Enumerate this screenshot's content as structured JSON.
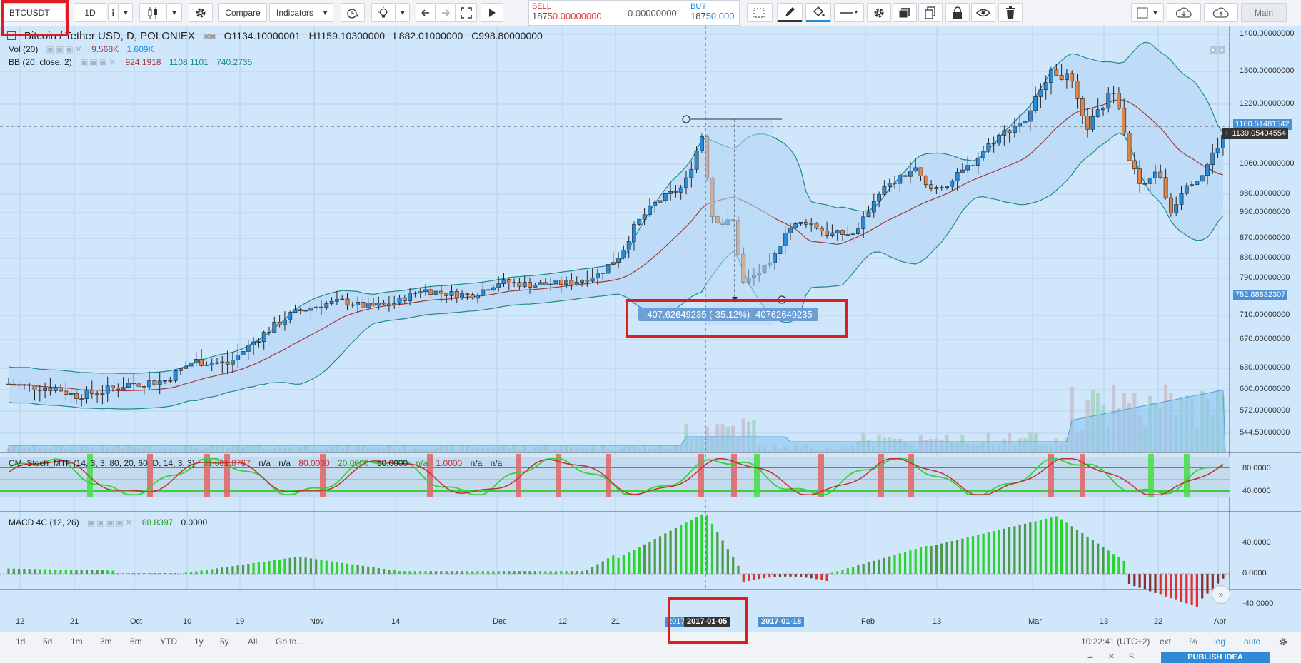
{
  "toolbar": {
    "symbol": "BTCUSDT",
    "interval": "1D",
    "compare_label": "Compare",
    "indicators_label": "Indicators",
    "sell_label": "SELL",
    "sell_price_prefix": "187",
    "sell_price_suffix": "50.00000000",
    "spread": "0.00000000",
    "buy_label": "BUY",
    "buy_price_prefix": "187",
    "buy_price_suffix": "50.000",
    "layout_label": "Main"
  },
  "legend": {
    "title": "Bitcoin / Tether USD, D, POLONIEX",
    "open": "O1134.10000001",
    "high": "H1159.10300000",
    "low": "L882.01000000",
    "close": "C998.80000000",
    "vol_label": "Vol (20)",
    "vol_value1": "9.568K",
    "vol_value2": "1.609K",
    "bb_label": "BB (20, close, 2)",
    "bb_value1": "924.1918",
    "bb_value2": "1108.1101",
    "bb_value3": "740.2735",
    "stoch_label": "CM_Stoch_MTF (14, 3, 3, 80, 20, 60, D, 14, 3, 3)",
    "stoch_v1": "81.8",
    "stoch_v2": "81.8767",
    "stoch_na1": "n/a",
    "stoch_na2": "n/a",
    "stoch_v3": "80.0000",
    "stoch_v4": "20.0000",
    "stoch_v5": "50.0000",
    "stoch_na3": "n/a",
    "stoch_v6": "1.0000",
    "stoch_na4": "n/a",
    "stoch_na5": "n/a",
    "macd_label": "MACD 4C (12, 26)",
    "macd_v1": "68.8397",
    "macd_v2": "0.0000"
  },
  "measure": {
    "text": "-407.62649235 (-35.12%) -40762649235"
  },
  "price_axis": [
    {
      "label": "1400.00000000",
      "price": 1400
    },
    {
      "label": "1300.00000000",
      "price": 1300
    },
    {
      "label": "1220.00000000",
      "price": 1220
    },
    {
      "label": "1060.00000000",
      "price": 1060
    },
    {
      "label": "980.00000000",
      "price": 980
    },
    {
      "label": "930.00000000",
      "price": 930
    },
    {
      "label": "870.00000000",
      "price": 870
    },
    {
      "label": "830.00000000",
      "price": 830
    },
    {
      "label": "790.00000000",
      "price": 790
    },
    {
      "label": "710.00000000",
      "price": 710
    },
    {
      "label": "670.00000000",
      "price": 670
    },
    {
      "label": "630.00000000",
      "price": 630
    },
    {
      "label": "600.00000000",
      "price": 600
    },
    {
      "label": "572.00000000",
      "price": 572
    },
    {
      "label": "544.50000000",
      "price": 544.5
    }
  ],
  "price_tags": {
    "high_tag": "1160.51481542",
    "last_tag": "1139.05404554",
    "low_tag": "752.88832307",
    "high_price": 1160.5,
    "last_price": 1139.05,
    "low_price": 752.89
  },
  "stoch_axis": [
    "80.0000",
    "40.0000"
  ],
  "macd_axis": [
    "40.0000",
    "0.0000",
    "-40.0000"
  ],
  "time_axis": [
    "12",
    "21",
    "Oct",
    "10",
    "19",
    "Nov",
    "14",
    "Dec",
    "12",
    "21",
    "Feb",
    "13",
    "Mar",
    "13",
    "22",
    "Apr"
  ],
  "time_markers": {
    "partial": "2017",
    "crosshair_date": "2017-01-05",
    "end_date": "2017-01-18"
  },
  "bottom_bar": {
    "ranges": [
      "1d",
      "5d",
      "1m",
      "3m",
      "6m",
      "YTD",
      "1y",
      "5y",
      "All"
    ],
    "goto_label": "Go to...",
    "clock": "10:22:41 (UTC+2)",
    "ext_label": "ext",
    "percent_label": "%",
    "log_label": "log",
    "auto_label": "auto",
    "publish_label": "PUBLISH IDEA"
  },
  "colors": {
    "chart_bg": "#cfe6fb",
    "bull": "#2a8ad6",
    "bear": "#e0854a",
    "highlight_red": "#e01b22",
    "stoch_green": "#39d039",
    "stoch_red": "#e05050",
    "macd_green": "#2ad42a",
    "macd_red": "#e03030"
  }
}
